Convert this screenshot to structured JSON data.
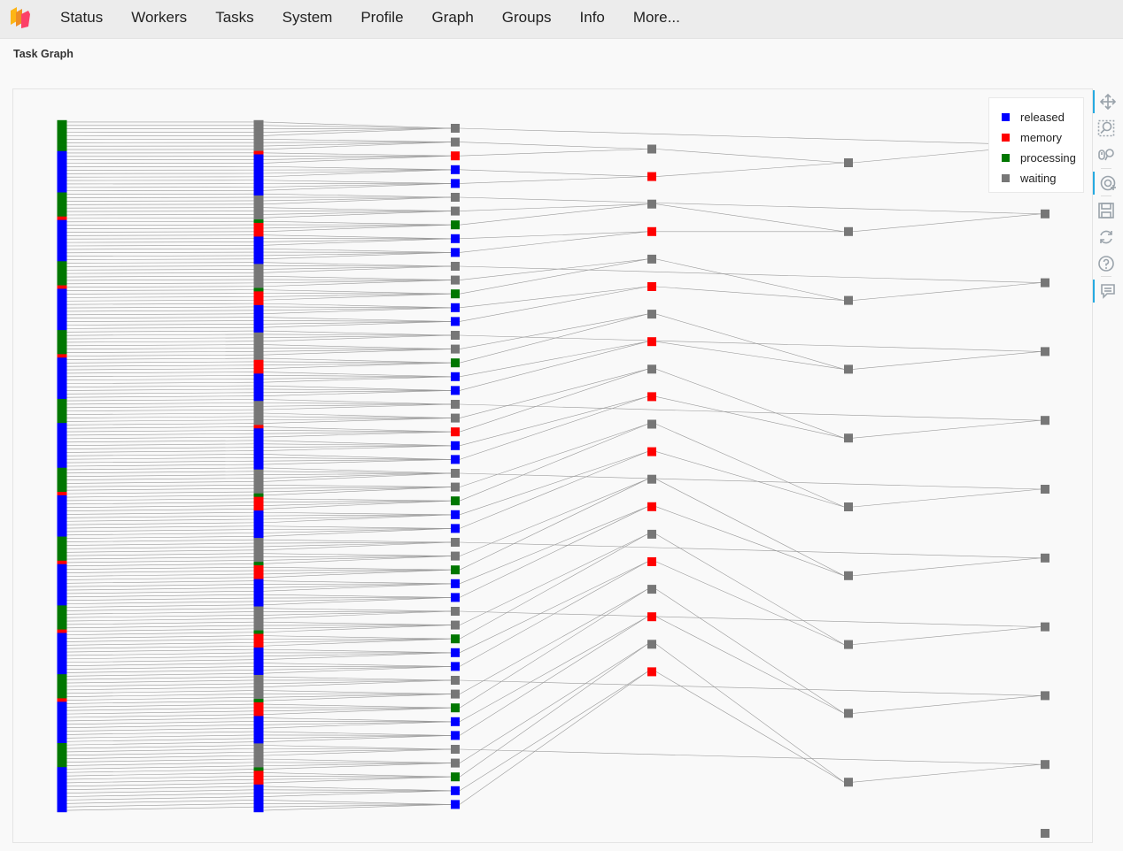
{
  "navbar": {
    "logo": "dask-logo-icon",
    "items": [
      "Status",
      "Workers",
      "Tasks",
      "System",
      "Profile",
      "Graph",
      "Groups",
      "Info",
      "More..."
    ]
  },
  "page": {
    "title": "Task Graph"
  },
  "legend": [
    {
      "label": "released",
      "color": "#0000ff"
    },
    {
      "label": "memory",
      "color": "#ff0000"
    },
    {
      "label": "processing",
      "color": "#007700"
    },
    {
      "label": "waiting",
      "color": "#777777"
    }
  ],
  "toolbar": [
    "pan-icon",
    "box-zoom-icon",
    "wheel-zoom-icon",
    "tap-icon",
    "save-icon",
    "reset-icon",
    "help-icon",
    "hover-icon"
  ],
  "chart_data": {
    "type": "network",
    "title": "Task Graph",
    "colors": {
      "released": "#0000ff",
      "memory": "#ff0000",
      "processing": "#007700",
      "waiting": "#777777",
      "edge": "#9a9a9a"
    },
    "layers": [
      {
        "name": "layer-0",
        "states": [
          "processing",
          "processing",
          "processing",
          "processing",
          "processing",
          "processing",
          "processing",
          "processing",
          "processing",
          "released",
          "released",
          "released",
          "released",
          "released",
          "released",
          "released",
          "released",
          "released",
          "released",
          "released",
          "released",
          "processing",
          "processing",
          "processing",
          "processing",
          "processing",
          "processing",
          "processing",
          "memory",
          "released",
          "released",
          "released",
          "released",
          "released",
          "released",
          "released",
          "released",
          "released",
          "released",
          "released",
          "released",
          "processing",
          "processing",
          "processing",
          "processing",
          "processing",
          "processing",
          "processing",
          "memory",
          "released",
          "released",
          "released",
          "released",
          "released",
          "released",
          "released",
          "released",
          "released",
          "released",
          "released",
          "released",
          "processing",
          "processing",
          "processing",
          "processing",
          "processing",
          "processing",
          "processing",
          "memory",
          "released",
          "released",
          "released",
          "released",
          "released",
          "released",
          "released",
          "released",
          "released",
          "released",
          "released",
          "released",
          "processing",
          "processing",
          "processing",
          "processing",
          "processing",
          "processing",
          "processing",
          "released",
          "released",
          "released",
          "released",
          "released",
          "released",
          "released",
          "released",
          "released",
          "released",
          "released",
          "released",
          "released",
          "processing",
          "processing",
          "processing",
          "processing",
          "processing",
          "processing",
          "processing",
          "memory",
          "released",
          "released",
          "released",
          "released",
          "released",
          "released",
          "released",
          "released",
          "released",
          "released",
          "released",
          "released",
          "processing",
          "processing",
          "processing",
          "processing",
          "processing",
          "processing",
          "processing",
          "memory",
          "released",
          "released",
          "released",
          "released",
          "released",
          "released",
          "released",
          "released",
          "released",
          "released",
          "released",
          "released",
          "processing",
          "processing",
          "processing",
          "processing",
          "processing",
          "processing",
          "processing",
          "memory",
          "released",
          "released",
          "released",
          "released",
          "released",
          "released",
          "released",
          "released",
          "released",
          "released",
          "released",
          "released",
          "processing",
          "processing",
          "processing",
          "processing",
          "processing",
          "processing",
          "processing",
          "memory",
          "released",
          "released",
          "released",
          "released",
          "released",
          "released",
          "released",
          "released",
          "released",
          "released",
          "released",
          "released",
          "processing",
          "processing",
          "processing",
          "processing",
          "processing",
          "processing",
          "processing",
          "released",
          "released",
          "released",
          "released",
          "released",
          "released",
          "released",
          "released",
          "released",
          "released",
          "released",
          "released",
          "released"
        ]
      },
      {
        "name": "layer-1",
        "states": [
          "waiting",
          "waiting",
          "waiting",
          "waiting",
          "waiting",
          "waiting",
          "waiting",
          "waiting",
          "waiting",
          "memory",
          "released",
          "released",
          "released",
          "released",
          "released",
          "released",
          "released",
          "released",
          "released",
          "released",
          "released",
          "released",
          "waiting",
          "waiting",
          "waiting",
          "waiting",
          "waiting",
          "waiting",
          "waiting",
          "processing",
          "memory",
          "memory",
          "memory",
          "memory",
          "released",
          "released",
          "released",
          "released",
          "released",
          "released",
          "released",
          "released",
          "waiting",
          "waiting",
          "waiting",
          "waiting",
          "waiting",
          "waiting",
          "waiting",
          "processing",
          "memory",
          "memory",
          "memory",
          "memory",
          "released",
          "released",
          "released",
          "released",
          "released",
          "released",
          "released",
          "released",
          "waiting",
          "waiting",
          "waiting",
          "waiting",
          "waiting",
          "waiting",
          "waiting",
          "waiting",
          "memory",
          "memory",
          "memory",
          "memory",
          "released",
          "released",
          "released",
          "released",
          "released",
          "released",
          "released",
          "released",
          "waiting",
          "waiting",
          "waiting",
          "waiting",
          "waiting",
          "waiting",
          "waiting",
          "memory",
          "released",
          "released",
          "released",
          "released",
          "released",
          "released",
          "released",
          "released",
          "released",
          "released",
          "released",
          "released",
          "waiting",
          "waiting",
          "waiting",
          "waiting",
          "waiting",
          "waiting",
          "waiting",
          "processing",
          "memory",
          "memory",
          "memory",
          "memory",
          "released",
          "released",
          "released",
          "released",
          "released",
          "released",
          "released",
          "released",
          "waiting",
          "waiting",
          "waiting",
          "waiting",
          "waiting",
          "waiting",
          "waiting",
          "processing",
          "memory",
          "memory",
          "memory",
          "memory",
          "released",
          "released",
          "released",
          "released",
          "released",
          "released",
          "released",
          "released",
          "waiting",
          "waiting",
          "waiting",
          "waiting",
          "waiting",
          "waiting",
          "waiting",
          "processing",
          "memory",
          "memory",
          "memory",
          "memory",
          "released",
          "released",
          "released",
          "released",
          "released",
          "released",
          "released",
          "released",
          "waiting",
          "waiting",
          "waiting",
          "waiting",
          "waiting",
          "waiting",
          "waiting",
          "processing",
          "memory",
          "memory",
          "memory",
          "memory",
          "released",
          "released",
          "released",
          "released",
          "released",
          "released",
          "released",
          "released",
          "waiting",
          "waiting",
          "waiting",
          "waiting",
          "waiting",
          "waiting",
          "waiting",
          "processing",
          "memory",
          "memory",
          "memory",
          "memory",
          "released",
          "released",
          "released",
          "released",
          "released",
          "released",
          "released",
          "released"
        ]
      },
      {
        "name": "layer-2",
        "states": [
          "waiting",
          "waiting",
          "memory",
          "released",
          "released",
          "waiting",
          "waiting",
          "processing",
          "released",
          "released",
          "waiting",
          "waiting",
          "processing",
          "released",
          "released",
          "waiting",
          "waiting",
          "processing",
          "released",
          "released",
          "waiting",
          "waiting",
          "memory",
          "released",
          "released",
          "waiting",
          "waiting",
          "processing",
          "released",
          "released",
          "waiting",
          "waiting",
          "processing",
          "released",
          "released",
          "waiting",
          "waiting",
          "processing",
          "released",
          "released",
          "waiting",
          "waiting",
          "processing",
          "released",
          "released",
          "waiting",
          "waiting",
          "processing",
          "released",
          "released"
        ]
      },
      {
        "name": "layer-3",
        "states": [
          "waiting",
          "memory",
          "waiting",
          "memory",
          "waiting",
          "memory",
          "waiting",
          "memory",
          "waiting",
          "memory",
          "waiting",
          "memory",
          "waiting",
          "memory",
          "waiting",
          "memory",
          "waiting",
          "memory",
          "waiting",
          "memory"
        ]
      },
      {
        "name": "layer-4",
        "states": [
          "waiting",
          "waiting",
          "waiting",
          "waiting",
          "waiting",
          "waiting",
          "waiting",
          "waiting",
          "waiting",
          "waiting"
        ]
      },
      {
        "name": "layer-5",
        "states": [
          "waiting",
          "waiting",
          "waiting",
          "waiting",
          "waiting",
          "waiting",
          "waiting",
          "waiting",
          "waiting",
          "waiting",
          "waiting"
        ]
      }
    ]
  }
}
